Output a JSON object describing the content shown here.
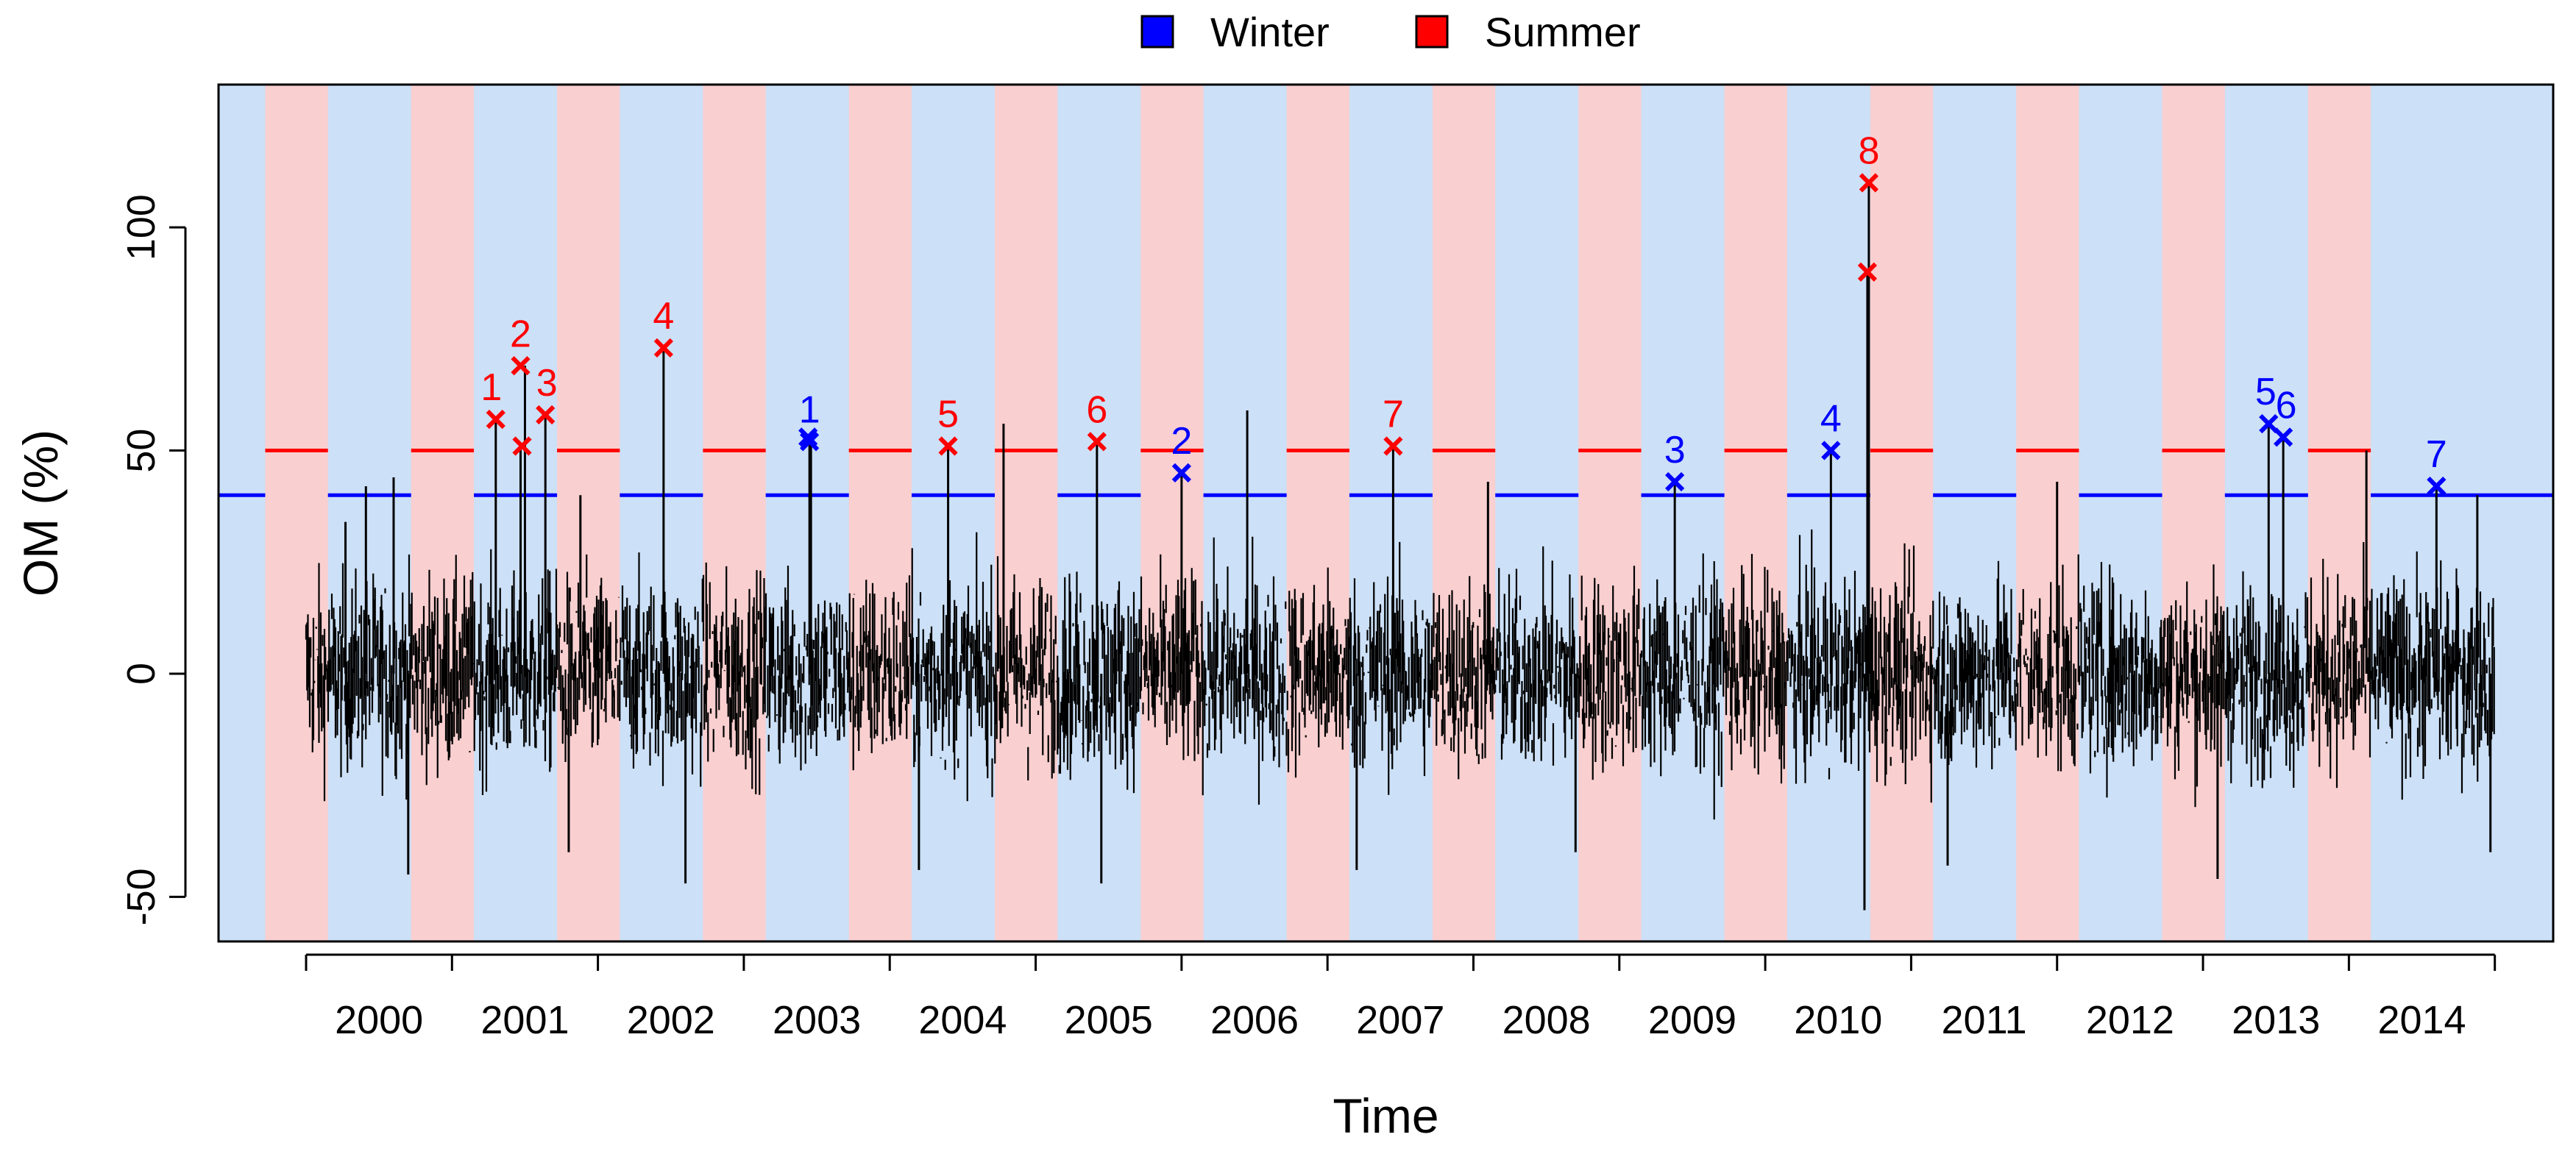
{
  "chart_data": {
    "type": "line",
    "xlabel": "Time",
    "ylabel": "OM (%)",
    "xlim": [
      1999.4,
      2015.4
    ],
    "ylim": [
      -60,
      132
    ],
    "x_ticks": [
      2000,
      2001,
      2002,
      2003,
      2004,
      2005,
      2006,
      2007,
      2008,
      2009,
      2010,
      2011,
      2012,
      2013,
      2014
    ],
    "y_ticks": [
      -50,
      0,
      50,
      100
    ],
    "grid": false,
    "legend": {
      "position": "top-center",
      "entries": [
        {
          "label": "Winter",
          "color": "#0000ff"
        },
        {
          "label": "Summer",
          "color": "#ff0000"
        }
      ]
    },
    "seasons": {
      "winter_bg": "#cce0f7",
      "summer_bg": "#f9cfd0",
      "summer_periods": [
        [
          1999.72,
          2000.15
        ],
        [
          2000.72,
          2001.15
        ],
        [
          2001.72,
          2002.15
        ],
        [
          2002.72,
          2003.15
        ],
        [
          2003.72,
          2004.15
        ],
        [
          2004.72,
          2005.15
        ],
        [
          2005.72,
          2006.15
        ],
        [
          2006.72,
          2007.15
        ],
        [
          2007.72,
          2008.15
        ],
        [
          2008.72,
          2009.15
        ],
        [
          2009.72,
          2010.15
        ],
        [
          2010.72,
          2011.15
        ],
        [
          2011.72,
          2012.15
        ],
        [
          2012.72,
          2013.15
        ],
        [
          2013.72,
          2014.15
        ]
      ]
    },
    "thresholds": {
      "winter": {
        "value": 40,
        "color": "#0000ff"
      },
      "summer": {
        "value": 50,
        "color": "#ff0000"
      }
    },
    "series": [
      {
        "color": "#000000",
        "x_start": 2000.0,
        "x_end": 2015.0,
        "typical_range": [
          -30,
          25
        ],
        "extreme_range": [
          -53,
          110
        ],
        "peaks": [
          {
            "x": 2000.27,
            "y": 34
          },
          {
            "x": 2000.41,
            "y": 42
          },
          {
            "x": 2000.6,
            "y": 44
          },
          {
            "x": 2001.3,
            "y": 57
          },
          {
            "x": 2001.47,
            "y": 51
          },
          {
            "x": 2001.5,
            "y": 69
          },
          {
            "x": 2001.64,
            "y": 58
          },
          {
            "x": 2001.88,
            "y": 40
          },
          {
            "x": 2002.45,
            "y": 73
          },
          {
            "x": 2003.45,
            "y": 53
          },
          {
            "x": 2003.46,
            "y": 52
          },
          {
            "x": 2004.4,
            "y": 51
          },
          {
            "x": 2004.78,
            "y": 56
          },
          {
            "x": 2005.42,
            "y": 52
          },
          {
            "x": 2006.0,
            "y": 45
          },
          {
            "x": 2006.45,
            "y": 59
          },
          {
            "x": 2007.45,
            "y": 51
          },
          {
            "x": 2008.1,
            "y": 43
          },
          {
            "x": 2009.38,
            "y": 43
          },
          {
            "x": 2010.45,
            "y": 50
          },
          {
            "x": 2010.7,
            "y": 90
          },
          {
            "x": 2010.71,
            "y": 110
          },
          {
            "x": 2012.0,
            "y": 43
          },
          {
            "x": 2013.45,
            "y": 56
          },
          {
            "x": 2013.55,
            "y": 53
          },
          {
            "x": 2014.12,
            "y": 50
          },
          {
            "x": 2014.6,
            "y": 42
          },
          {
            "x": 2014.88,
            "y": 40
          }
        ],
        "troughs": [
          {
            "x": 2000.7,
            "y": -45
          },
          {
            "x": 2001.8,
            "y": -40
          },
          {
            "x": 2002.6,
            "y": -47
          },
          {
            "x": 2004.2,
            "y": -44
          },
          {
            "x": 2005.45,
            "y": -47
          },
          {
            "x": 2007.2,
            "y": -44
          },
          {
            "x": 2008.7,
            "y": -40
          },
          {
            "x": 2010.68,
            "y": -53
          },
          {
            "x": 2011.25,
            "y": -43
          },
          {
            "x": 2013.1,
            "y": -46
          },
          {
            "x": 2014.97,
            "y": -40
          }
        ]
      }
    ],
    "annotations": {
      "summer": [
        {
          "label": "1",
          "x": 2001.3,
          "y": 57
        },
        {
          "label": "2",
          "x": 2001.47,
          "y": 69
        },
        {
          "label": "3",
          "x": 2001.64,
          "y": 58
        },
        {
          "label": "4",
          "x": 2002.45,
          "y": 73
        },
        {
          "label": "5",
          "x": 2004.4,
          "y": 51
        },
        {
          "label": "6",
          "x": 2005.42,
          "y": 52
        },
        {
          "label": "7",
          "x": 2007.45,
          "y": 51
        },
        {
          "label": "8",
          "x": 2010.71,
          "y": 110
        }
      ],
      "summer_extra_markers": [
        {
          "x": 2001.48,
          "y": 51
        },
        {
          "x": 2010.7,
          "y": 90
        }
      ],
      "winter": [
        {
          "label": "1",
          "x": 2003.45,
          "y": 52
        },
        {
          "label": "2",
          "x": 2006.0,
          "y": 45
        },
        {
          "label": "3",
          "x": 2009.38,
          "y": 43
        },
        {
          "label": "4",
          "x": 2010.45,
          "y": 50
        },
        {
          "label": "5",
          "x": 2013.45,
          "y": 56
        },
        {
          "label": "6",
          "x": 2013.55,
          "y": 53
        },
        {
          "label": "7",
          "x": 2014.6,
          "y": 42
        }
      ],
      "winter_extra_markers": [
        {
          "x": 2003.44,
          "y": 53
        }
      ]
    }
  }
}
